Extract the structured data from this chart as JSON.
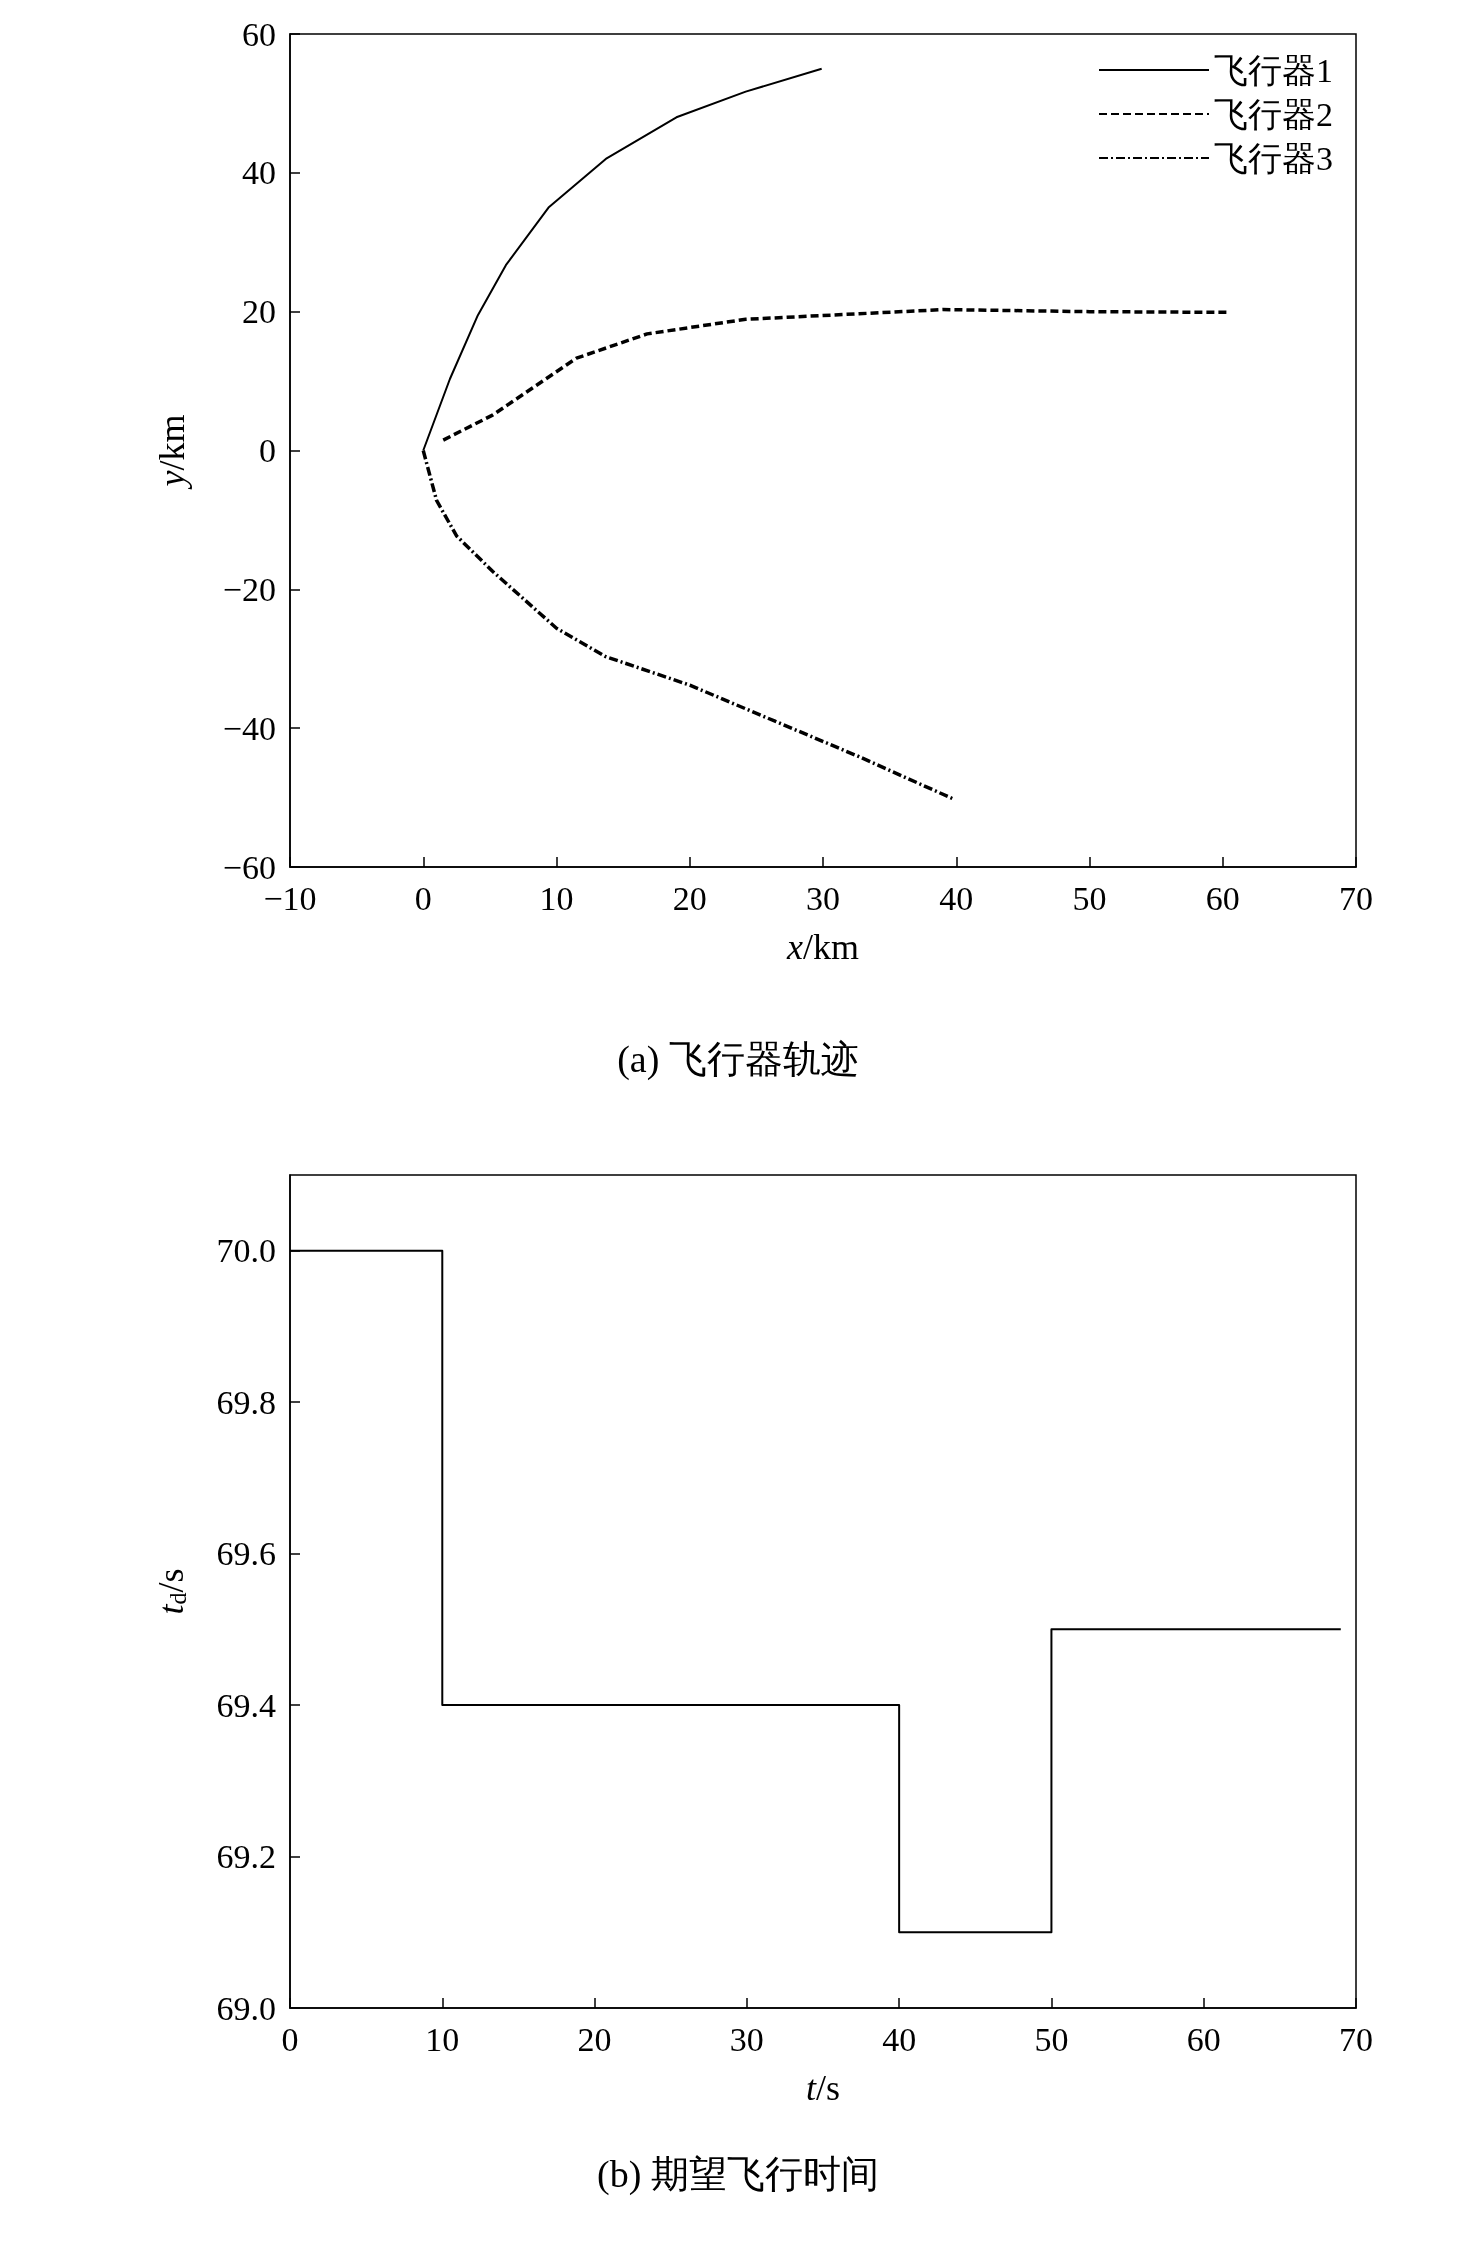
{
  "chart_data": [
    {
      "type": "line",
      "title": "(a) 飞行器轨迹",
      "xlabel": "x/km",
      "ylabel": "y/km",
      "xlim": [
        -10,
        70
      ],
      "xticks": [
        -10,
        0,
        10,
        20,
        30,
        40,
        50,
        60,
        70
      ],
      "ylim": [
        -60,
        60
      ],
      "yticks": [
        -60,
        -40,
        -20,
        0,
        20,
        40,
        60
      ],
      "grid": false,
      "legend": "top right",
      "marker": "none",
      "series": [
        {
          "name": "飞行器1",
          "color": "#000000",
          "line_style": "solid",
          "x": [
            0,
            2,
            4.1,
            6.2,
            9.4,
            13.7,
            19,
            24.2,
            29.9
          ],
          "values": [
            0,
            10.3,
            19.5,
            26.7,
            35,
            42,
            48,
            51.7,
            55
          ]
        },
        {
          "name": "飞行器2",
          "color": "#000000",
          "line_style": "dashed",
          "x": [
            1.5,
            5.2,
            11.5,
            16.8,
            24.2,
            32.7,
            39,
            50,
            60.3
          ],
          "values": [
            1.5,
            5.1,
            13.3,
            16.8,
            18.9,
            19.7,
            20.3,
            20,
            19.9
          ]
        },
        {
          "name": "飞行器3",
          "color": "#000000",
          "line_style": "dashdot",
          "x": [
            0,
            1,
            2.5,
            5.2,
            10,
            13.7,
            20,
            26.4,
            32.7,
            39.9
          ],
          "values": [
            0,
            -7.2,
            -12.3,
            -17.4,
            -25.6,
            -29.7,
            -33.8,
            -39,
            -44.1,
            -50.3
          ]
        }
      ]
    },
    {
      "type": "step",
      "title": "(b) 期望飞行时间",
      "xlabel": "t/s",
      "ylabel": "t$_{d}$/s",
      "xlim": [
        0,
        70
      ],
      "xticks": [
        0,
        10,
        20,
        30,
        40,
        50,
        60,
        70
      ],
      "ylim": [
        69,
        70.1
      ],
      "yticks": [
        {
          "value": 69,
          "label": "69.0"
        },
        {
          "value": 69.2,
          "label": "69.2"
        },
        {
          "value": 69.4,
          "label": "69.4"
        },
        {
          "value": 69.6,
          "label": "69.6"
        },
        {
          "value": 69.8,
          "label": "69.8"
        },
        {
          "value": 70,
          "label": "70.0"
        }
      ],
      "grid": false,
      "legend": false,
      "marker": "none",
      "line_style": "solid",
      "x": [
        0,
        10,
        40,
        50,
        69
      ],
      "values": [
        70,
        69.4,
        69.1,
        69.5,
        69.5
      ],
      "color": "#000000"
    }
  ]
}
